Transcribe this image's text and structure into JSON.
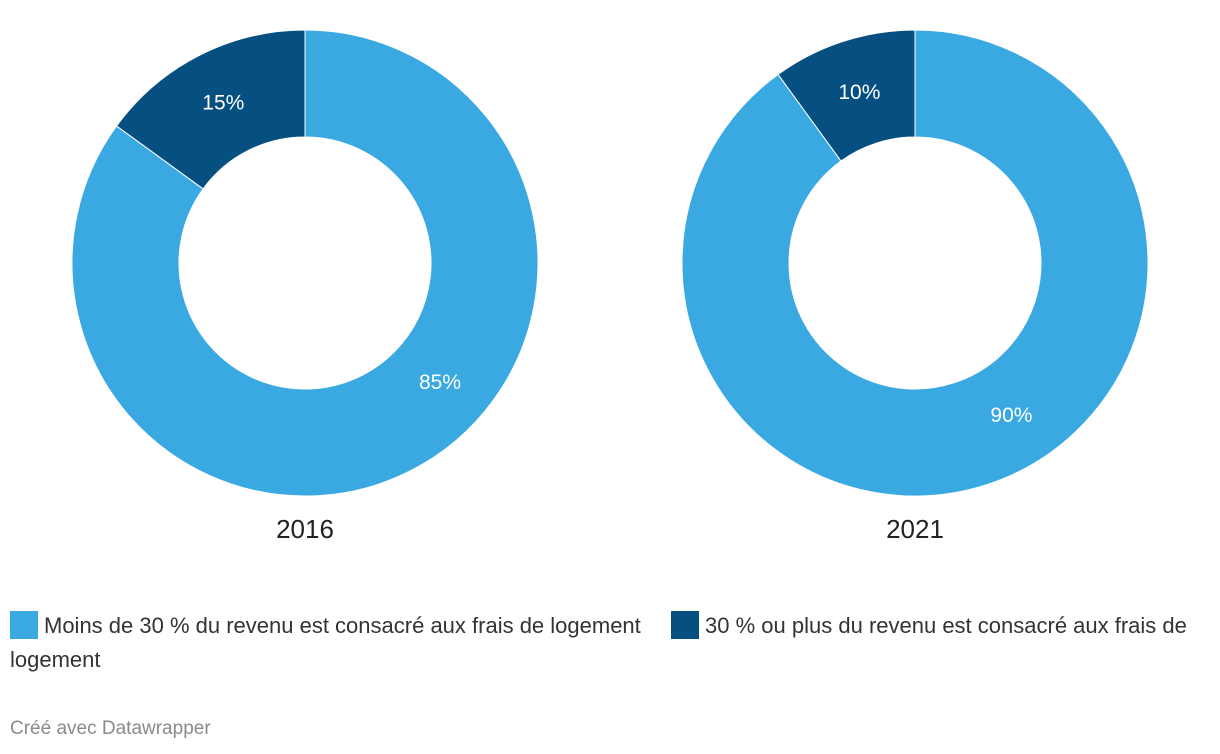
{
  "chart_data": [
    {
      "type": "pie",
      "title": "2016",
      "categories": [
        "30 % ou plus du revenu est consacré aux frais de logement",
        "Moins de 30 % du revenu est consacré aux frais de logement"
      ],
      "values": [
        15,
        85
      ],
      "labels": [
        "15%",
        "85%"
      ],
      "colors": [
        "#054f81",
        "#3aa9e2"
      ]
    },
    {
      "type": "pie",
      "title": "2021",
      "categories": [
        "30 % ou plus du revenu est consacré aux frais de logement",
        "Moins de 30 % du revenu est consacré aux frais de logement"
      ],
      "values": [
        10,
        90
      ],
      "labels": [
        "10%",
        "90%"
      ],
      "colors": [
        "#054f81",
        "#3aa9e2"
      ]
    }
  ],
  "legend": {
    "placement": "bottom",
    "items": [
      {
        "label": "Moins de 30 % du revenu est consacré aux frais de logement",
        "color": "#3aa9e2"
      },
      {
        "label": "30 % ou plus du revenu est consacré aux frais de logement",
        "color": "#054f81"
      }
    ]
  },
  "credit": "Créé avec Datawrapper"
}
